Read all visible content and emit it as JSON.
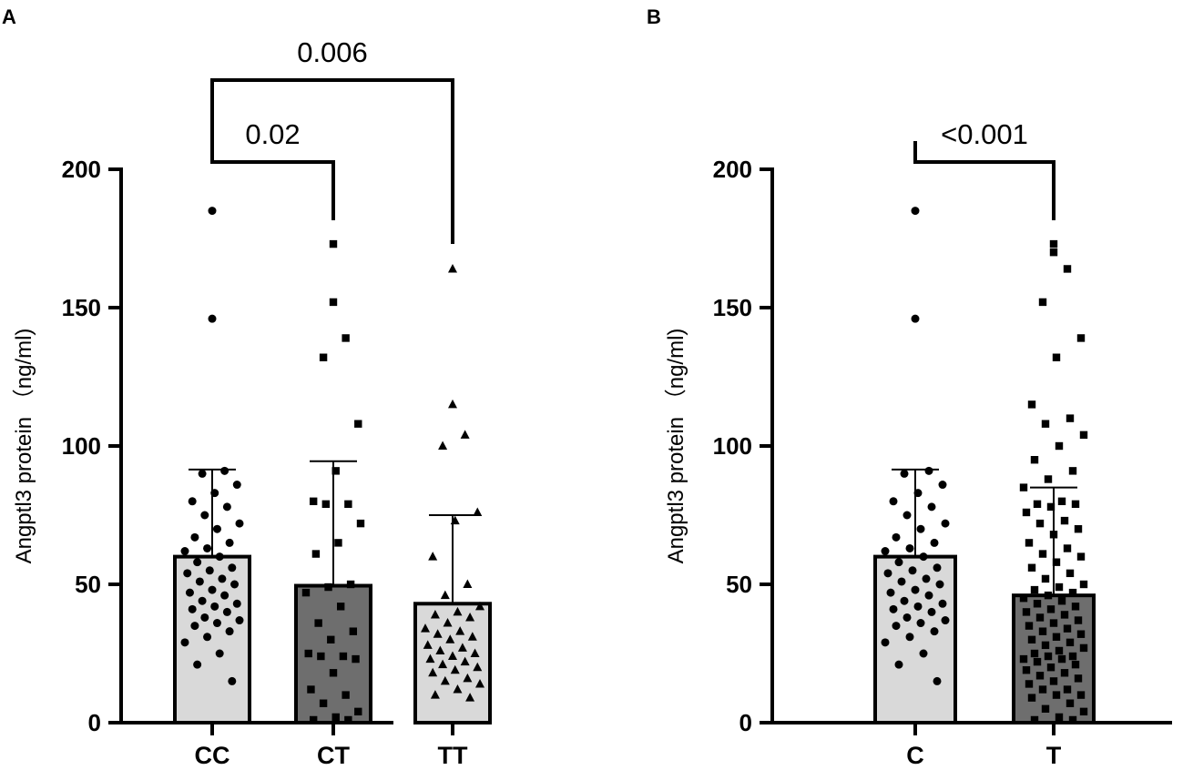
{
  "colors": {
    "axis": "#000000",
    "bar_light": "#d9d9d9",
    "bar_dark": "#6e6e6e",
    "points": "#000000"
  },
  "chart_data": [
    {
      "panel_label": "A",
      "type": "bar",
      "ylabel": "Angptl3 protein （ng/ml)",
      "ylim": [
        0,
        200
      ],
      "yticks": [
        "0",
        "50",
        "100",
        "150",
        "200"
      ],
      "categories": [
        "CC",
        "CT",
        "TT"
      ],
      "values": [
        60,
        49.5,
        43
      ],
      "error_upper": [
        91.5,
        94.5,
        75
      ],
      "bar_colors": [
        "#d9d9d9",
        "#6e6e6e",
        "#d9d9d9"
      ],
      "point_markers": [
        "circle",
        "square",
        "triangle"
      ],
      "points": [
        [
          185,
          146,
          91,
          90,
          86,
          83,
          80,
          78,
          75,
          72,
          70,
          67,
          65,
          63,
          62,
          60,
          58,
          56,
          55,
          54,
          52,
          51,
          50,
          48,
          47,
          46,
          44,
          43,
          42,
          41,
          40,
          38,
          37,
          36,
          35,
          33,
          31,
          29,
          25,
          21,
          15
        ],
        [
          173,
          152,
          139,
          132,
          108,
          91,
          80,
          79,
          79,
          72,
          65,
          61,
          50,
          49,
          47,
          42,
          36,
          33,
          30,
          25,
          24,
          24,
          23,
          18,
          12,
          10,
          7,
          4,
          2,
          1,
          1
        ],
        [
          164,
          115,
          104,
          100,
          76,
          73,
          60,
          50,
          46,
          42,
          40,
          39,
          38,
          36,
          34,
          33,
          32,
          31,
          30,
          28,
          27,
          26,
          25,
          24,
          23,
          22,
          21,
          20,
          19,
          18,
          16,
          15,
          14,
          12,
          10,
          9
        ]
      ],
      "comparisons": [
        {
          "from": 0,
          "to": 1,
          "label": "0.02"
        },
        {
          "from": 0,
          "to": 2,
          "label": "0.006"
        }
      ]
    },
    {
      "panel_label": "B",
      "type": "bar",
      "ylabel": "Angptl3 protein （ng/ml)",
      "ylim": [
        0,
        200
      ],
      "yticks": [
        "0",
        "50",
        "100",
        "150",
        "200"
      ],
      "categories": [
        "C",
        "T"
      ],
      "values": [
        60,
        46
      ],
      "error_upper": [
        91.5,
        85
      ],
      "bar_colors": [
        "#d9d9d9",
        "#6e6e6e"
      ],
      "point_markers": [
        "circle",
        "square"
      ],
      "points": [
        [
          185,
          146,
          91,
          90,
          86,
          83,
          80,
          78,
          75,
          72,
          70,
          67,
          65,
          63,
          62,
          60,
          58,
          56,
          55,
          54,
          52,
          51,
          50,
          48,
          47,
          46,
          44,
          43,
          42,
          41,
          40,
          38,
          37,
          36,
          35,
          33,
          31,
          29,
          25,
          21,
          15
        ],
        [
          173,
          170,
          164,
          152,
          139,
          132,
          115,
          110,
          108,
          104,
          100,
          95,
          91,
          88,
          85,
          80,
          79,
          79,
          78,
          76,
          73,
          72,
          70,
          68,
          65,
          63,
          61,
          60,
          58,
          56,
          54,
          52,
          50,
          49,
          48,
          47,
          46,
          45,
          44,
          43,
          42,
          41,
          40,
          39,
          38,
          37,
          36,
          35,
          34,
          33,
          32,
          31,
          30,
          29,
          28,
          27,
          26,
          25,
          24,
          24,
          23,
          23,
          22,
          21,
          20,
          19,
          18,
          17,
          16,
          15,
          14,
          12,
          12,
          10,
          10,
          9,
          7,
          5,
          4,
          2,
          1,
          1
        ]
      ],
      "comparisons": [
        {
          "from": 0,
          "to": 1,
          "label": "<0.001"
        }
      ]
    }
  ]
}
